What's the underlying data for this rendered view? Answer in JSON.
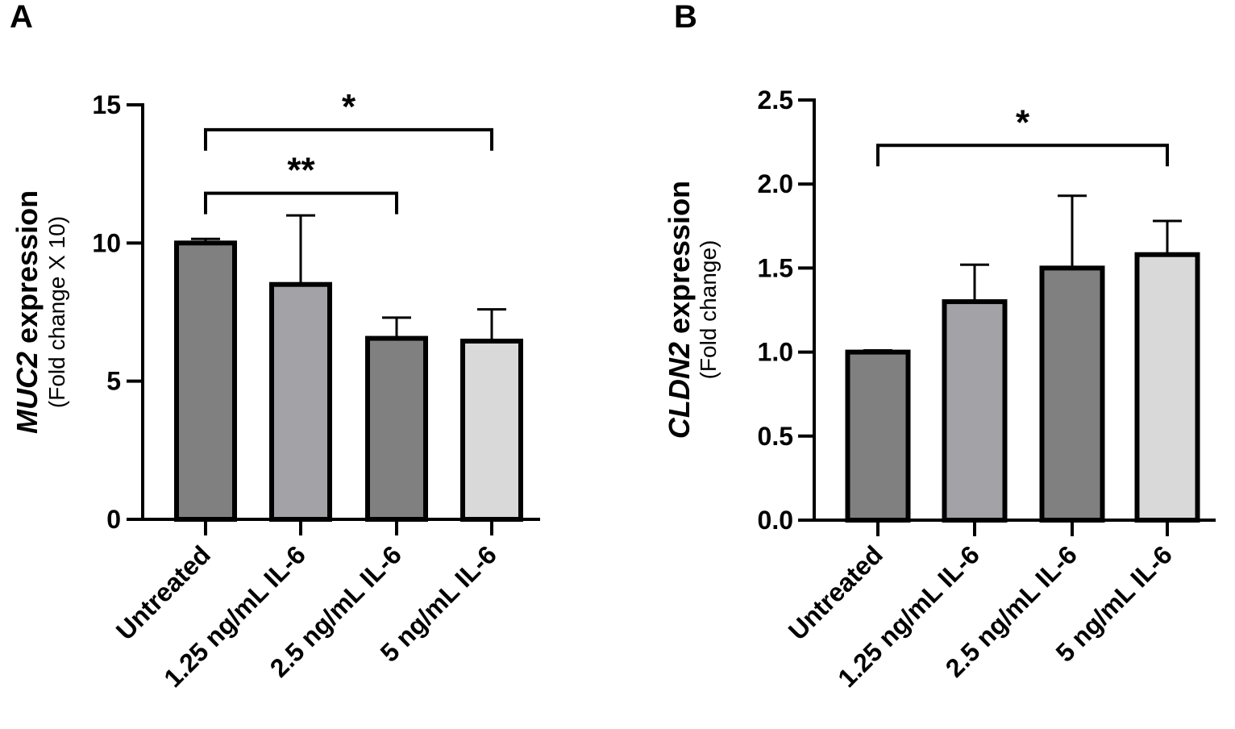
{
  "chart_data": [
    {
      "panel": "A",
      "type": "bar",
      "categories": [
        "Untreated",
        "1.25 ng/mL IL-6",
        "2.5 ng/mL IL-6",
        "5 ng/mL IL-6"
      ],
      "values": [
        10.0,
        8.5,
        6.55,
        6.45
      ],
      "errors": [
        0.15,
        2.5,
        0.75,
        1.15
      ],
      "colors": [
        "#808080",
        "#a3a3a7",
        "#808080",
        "#d9d9d9"
      ],
      "ylim": [
        0,
        15
      ],
      "yticks": [
        0,
        5,
        10,
        15
      ],
      "ytick_labels": [
        "0",
        "5",
        "10",
        "15"
      ],
      "ylabel_gene": "MUC2",
      "ylabel_main": " expression",
      "ylabel_sub": "(Fold change X 10)",
      "significance": [
        {
          "from": 0,
          "to": 3,
          "label": "*",
          "y": 14.1
        },
        {
          "from": 0,
          "to": 2,
          "label": "**",
          "y": 11.8
        }
      ]
    },
    {
      "panel": "B",
      "type": "bar",
      "categories": [
        "Untreated",
        "1.25 ng/mL IL-6",
        "2.5 ng/mL IL-6",
        "5 ng/mL IL-6"
      ],
      "values": [
        1.0,
        1.3,
        1.5,
        1.58
      ],
      "errors": [
        0.01,
        0.22,
        0.43,
        0.2
      ],
      "colors": [
        "#808080",
        "#a3a3a7",
        "#808080",
        "#d9d9d9"
      ],
      "ylim": [
        0,
        2.5
      ],
      "yticks": [
        0,
        0.5,
        1.0,
        1.5,
        2.0,
        2.5
      ],
      "ytick_labels": [
        "0.0",
        "0.5",
        "1.0",
        "1.5",
        "2.0",
        "2.5"
      ],
      "ylabel_gene": "CLDN2",
      "ylabel_main": " expression",
      "ylabel_sub": "(Fold change)",
      "significance": [
        {
          "from": 0,
          "to": 3,
          "label": "*",
          "y": 2.23
        }
      ]
    }
  ]
}
